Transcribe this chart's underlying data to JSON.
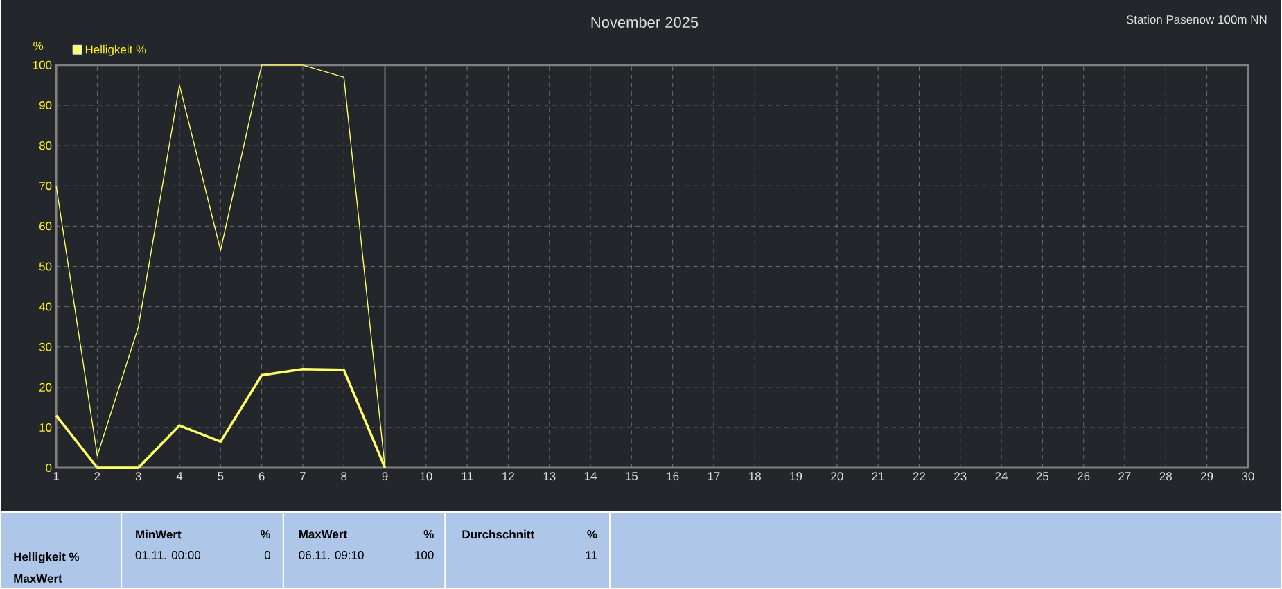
{
  "chart_data": {
    "type": "line",
    "title": "November 2025",
    "subtitle": "Station Pasenow 100m NN",
    "ylabel": "%",
    "x": [
      1,
      2,
      3,
      4,
      5,
      6,
      7,
      8,
      9
    ],
    "series": [
      {
        "name": "Helligkeit %",
        "color": "#ffff66",
        "values": [
          70,
          3,
          35,
          95,
          54,
          100,
          100,
          97,
          0
        ]
      },
      {
        "color": "#ffff66",
        "values": [
          13,
          0,
          0,
          10.5,
          6.5,
          23,
          24.5,
          24.3,
          0
        ]
      }
    ],
    "xlim": [
      1,
      30
    ],
    "ylim": [
      0,
      100
    ],
    "xticks": [
      1,
      2,
      3,
      4,
      5,
      6,
      7,
      8,
      9,
      10,
      11,
      12,
      13,
      14,
      15,
      16,
      17,
      18,
      19,
      20,
      21,
      22,
      23,
      24,
      25,
      26,
      27,
      28,
      29,
      30
    ],
    "yticks": [
      0,
      10,
      20,
      30,
      40,
      50,
      60,
      70,
      80,
      90,
      100
    ],
    "ref_lines": [
      {
        "axis": "x",
        "value": 9,
        "color": "#808080"
      }
    ],
    "grid": true,
    "legend": "top left",
    "marker": "none",
    "line_style": "solid",
    "annotations": [
      "Helligkeit %",
      "MaxWert",
      "MinWert",
      "%",
      "01.11.  00:00",
      "0",
      "MaxWert",
      "%",
      "06.11.  09:10",
      "100",
      "Durchschnitt",
      "%",
      "11"
    ]
  }
}
